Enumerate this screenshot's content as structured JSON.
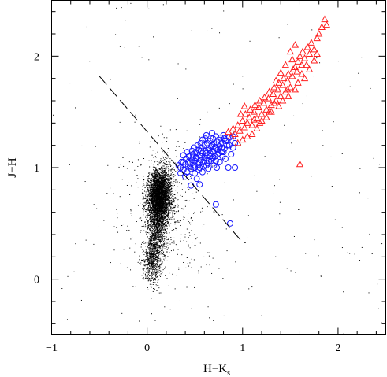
{
  "chart_data": {
    "type": "scatter",
    "title": "",
    "xlabel": "H−K",
    "xlabel_subscript": "s",
    "ylabel": "J−H",
    "xlim": [
      -1.0,
      2.5
    ],
    "ylim": [
      -0.5,
      2.5
    ],
    "xticks": [
      -1,
      0,
      1,
      2
    ],
    "yticks": [
      0,
      1,
      2
    ],
    "grid": false,
    "legend": "none",
    "colors": {
      "field_stars": "#000000",
      "blue_sources": "#1a1aff",
      "red_sources": "#ff2020",
      "dashed_line": "#000000"
    },
    "series": [
      {
        "marker": "dot",
        "color": "#000000",
        "count": 6000,
        "distribution": "dense clump centered near (0.13, 0.75) with tail down to (0.0, 0.0) and sparse scattered points across the plot"
      },
      {
        "marker": "open-circle",
        "color": "#1a1aff",
        "points": [
          [
            0.33,
            1.02
          ],
          [
            0.35,
            1.0
          ],
          [
            0.36,
            1.05
          ],
          [
            0.38,
            0.98
          ],
          [
            0.4,
            1.03
          ],
          [
            0.41,
            1.08
          ],
          [
            0.42,
            0.96
          ],
          [
            0.43,
            1.01
          ],
          [
            0.44,
            1.1
          ],
          [
            0.45,
            1.04
          ],
          [
            0.46,
            0.99
          ],
          [
            0.47,
            1.07
          ],
          [
            0.48,
            1.12
          ],
          [
            0.49,
            1.02
          ],
          [
            0.5,
            1.06
          ],
          [
            0.5,
            0.95
          ],
          [
            0.51,
            1.14
          ],
          [
            0.52,
            1.09
          ],
          [
            0.53,
            1.03
          ],
          [
            0.54,
            1.16
          ],
          [
            0.55,
            1.11
          ],
          [
            0.55,
            1.0
          ],
          [
            0.56,
            1.07
          ],
          [
            0.57,
            1.18
          ],
          [
            0.58,
            1.13
          ],
          [
            0.59,
            1.05
          ],
          [
            0.6,
            1.2
          ],
          [
            0.6,
            1.09
          ],
          [
            0.61,
            1.15
          ],
          [
            0.62,
            1.02
          ],
          [
            0.63,
            1.22
          ],
          [
            0.63,
            1.11
          ],
          [
            0.64,
            1.17
          ],
          [
            0.65,
            1.06
          ],
          [
            0.66,
            1.24
          ],
          [
            0.66,
            1.13
          ],
          [
            0.67,
            1.19
          ],
          [
            0.68,
            1.08
          ],
          [
            0.69,
            1.26
          ],
          [
            0.69,
            1.15
          ],
          [
            0.7,
            1.21
          ],
          [
            0.71,
            1.1
          ],
          [
            0.72,
            1.28
          ],
          [
            0.72,
            1.17
          ],
          [
            0.73,
            1.23
          ],
          [
            0.74,
            1.12
          ],
          [
            0.75,
            1.25
          ],
          [
            0.76,
            1.19
          ],
          [
            0.77,
            1.27
          ],
          [
            0.78,
            1.14
          ],
          [
            0.79,
            1.22
          ],
          [
            0.8,
            1.29
          ],
          [
            0.81,
            1.17
          ],
          [
            0.82,
            1.24
          ],
          [
            0.84,
            1.2
          ],
          [
            0.86,
            1.27
          ],
          [
            0.58,
            1.25
          ],
          [
            0.62,
            1.29
          ],
          [
            0.68,
            1.31
          ],
          [
            0.53,
            1.2
          ],
          [
            0.47,
            1.15
          ],
          [
            0.44,
            0.92
          ],
          [
            0.52,
            0.9
          ],
          [
            0.58,
            0.96
          ],
          [
            0.64,
            0.99
          ],
          [
            0.7,
            1.02
          ],
          [
            0.76,
            1.05
          ],
          [
            0.82,
            1.08
          ],
          [
            0.88,
            1.12
          ],
          [
            0.9,
            1.18
          ],
          [
            0.92,
            1.0
          ],
          [
            0.85,
            1.0
          ],
          [
            0.46,
            0.84
          ],
          [
            0.4,
            0.92
          ],
          [
            0.35,
            0.95
          ],
          [
            0.38,
            1.11
          ],
          [
            0.42,
            1.14
          ],
          [
            0.49,
            1.18
          ],
          [
            0.56,
            1.22
          ],
          [
            0.61,
            1.26
          ],
          [
            0.67,
            1.06
          ],
          [
            0.73,
            1.0
          ],
          [
            0.79,
            1.1
          ],
          [
            0.54,
            0.98
          ],
          [
            0.59,
            1.01
          ],
          [
            0.65,
            1.16
          ],
          [
            0.71,
            1.18
          ],
          [
            0.77,
            1.21
          ],
          [
            0.48,
            1.09
          ],
          [
            0.52,
            1.13
          ],
          [
            0.57,
            1.1
          ],
          [
            0.62,
            1.13
          ],
          [
            0.68,
            1.2
          ],
          [
            0.74,
            1.16
          ],
          [
            0.8,
            1.14
          ],
          [
            0.86,
            1.2
          ],
          [
            0.43,
            1.05
          ],
          [
            0.5,
            1.0
          ],
          [
            0.55,
            1.04
          ],
          [
            0.6,
            1.06
          ],
          [
            0.66,
            1.1
          ],
          [
            0.72,
            1.06
          ],
          [
            0.78,
            1.18
          ],
          [
            0.84,
            1.24
          ],
          [
            0.38,
            1.05
          ],
          [
            0.45,
            1.01
          ],
          [
            0.51,
            1.09
          ],
          [
            0.56,
            1.15
          ],
          [
            0.63,
            1.04
          ],
          [
            0.69,
            1.09
          ],
          [
            0.75,
            1.13
          ],
          [
            0.81,
            1.26
          ],
          [
            0.55,
            0.85
          ],
          [
            0.72,
            0.67
          ],
          [
            0.87,
            0.5
          ],
          [
            0.9,
            1.28
          ],
          [
            0.92,
            1.22
          ]
        ]
      },
      {
        "marker": "open-triangle",
        "color": "#ff2020",
        "points": [
          [
            0.85,
            1.32
          ],
          [
            0.88,
            1.28
          ],
          [
            0.9,
            1.35
          ],
          [
            0.92,
            1.3
          ],
          [
            0.95,
            1.38
          ],
          [
            0.97,
            1.33
          ],
          [
            1.0,
            1.42
          ],
          [
            1.02,
            1.36
          ],
          [
            1.03,
            1.48
          ],
          [
            1.05,
            1.4
          ],
          [
            1.07,
            1.45
          ],
          [
            1.08,
            1.52
          ],
          [
            1.1,
            1.38
          ],
          [
            1.12,
            1.5
          ],
          [
            1.13,
            1.56
          ],
          [
            1.15,
            1.44
          ],
          [
            1.17,
            1.54
          ],
          [
            1.18,
            1.6
          ],
          [
            1.2,
            1.48
          ],
          [
            1.22,
            1.58
          ],
          [
            1.23,
            1.63
          ],
          [
            1.25,
            1.52
          ],
          [
            1.27,
            1.62
          ],
          [
            1.28,
            1.68
          ],
          [
            1.3,
            1.56
          ],
          [
            1.32,
            1.66
          ],
          [
            1.33,
            1.72
          ],
          [
            1.35,
            1.6
          ],
          [
            1.37,
            1.7
          ],
          [
            1.38,
            1.76
          ],
          [
            1.4,
            1.64
          ],
          [
            1.42,
            1.74
          ],
          [
            1.43,
            1.8
          ],
          [
            1.45,
            1.68
          ],
          [
            1.47,
            1.78
          ],
          [
            1.48,
            1.84
          ],
          [
            1.5,
            1.72
          ],
          [
            1.52,
            1.82
          ],
          [
            1.53,
            1.88
          ],
          [
            1.55,
            1.9
          ],
          [
            1.57,
            1.86
          ],
          [
            1.58,
            1.95
          ],
          [
            1.6,
            2.0
          ],
          [
            1.62,
            1.92
          ],
          [
            1.63,
            2.04
          ],
          [
            1.65,
            1.98
          ],
          [
            1.68,
            2.08
          ],
          [
            1.7,
            2.02
          ],
          [
            1.72,
            2.12
          ],
          [
            1.75,
            2.06
          ],
          [
            1.78,
            2.16
          ],
          [
            1.8,
            2.2
          ],
          [
            1.83,
            2.26
          ],
          [
            1.86,
            2.33
          ],
          [
            1.88,
            2.28
          ],
          [
            1.5,
            2.04
          ],
          [
            1.55,
            2.1
          ],
          [
            1.6,
            1.03
          ],
          [
            1.45,
            1.92
          ],
          [
            1.4,
            1.85
          ],
          [
            1.35,
            1.78
          ],
          [
            1.65,
            1.8
          ],
          [
            1.7,
            1.88
          ],
          [
            1.3,
            1.5
          ],
          [
            1.25,
            1.45
          ],
          [
            1.2,
            1.42
          ],
          [
            1.15,
            1.35
          ],
          [
            1.1,
            1.3
          ],
          [
            1.05,
            1.28
          ],
          [
            1.0,
            1.25
          ],
          [
            0.95,
            1.22
          ],
          [
            1.02,
            1.55
          ],
          [
            0.98,
            1.48
          ],
          [
            1.38,
            1.55
          ],
          [
            1.42,
            1.6
          ],
          [
            1.48,
            1.64
          ],
          [
            1.55,
            1.7
          ],
          [
            1.58,
            1.76
          ],
          [
            1.62,
            1.84
          ],
          [
            1.67,
            1.92
          ],
          [
            1.75,
            1.96
          ],
          [
            1.78,
            2.02
          ],
          [
            1.52,
            1.97
          ],
          [
            1.47,
            1.7
          ],
          [
            1.33,
            1.58
          ],
          [
            1.28,
            1.5
          ],
          [
            1.18,
            1.4
          ],
          [
            1.12,
            1.43
          ]
        ]
      }
    ],
    "annotations": [
      {
        "type": "dashed-line",
        "x": [
          -0.5,
          1.0
        ],
        "y": [
          1.82,
          0.33
        ],
        "color": "#000000"
      }
    ]
  }
}
